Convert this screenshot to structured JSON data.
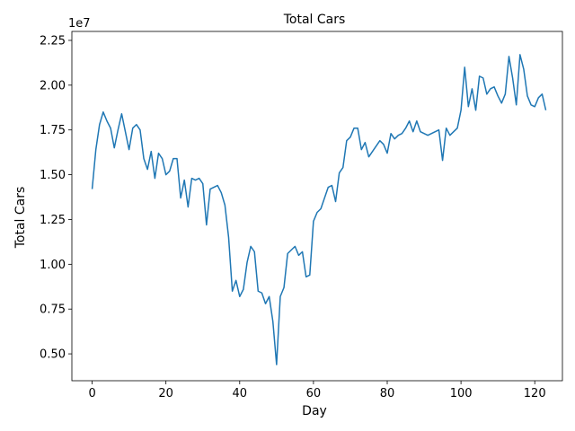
{
  "chart_data": {
    "type": "line",
    "title": "Total Cars",
    "xlabel": "Day",
    "ylabel": "Total Cars",
    "y_offset_label": "1e7",
    "xlim": [
      -5.5,
      127.5
    ],
    "ylim": [
      3.5,
      23.0
    ],
    "grid": false,
    "legend": "none",
    "color": "#1f77b4",
    "xticks": [
      0,
      20,
      40,
      60,
      80,
      100,
      120
    ],
    "xtick_labels": [
      "0",
      "20",
      "40",
      "60",
      "80",
      "100",
      "120"
    ],
    "yticks": [
      5.0,
      7.5,
      10.0,
      12.5,
      15.0,
      17.5,
      20.0,
      22.5
    ],
    "ytick_labels": [
      "0.50",
      "0.75",
      "1.00",
      "1.25",
      "1.50",
      "1.75",
      "2.00",
      "2.25"
    ],
    "series": [
      {
        "values": [
          14.2,
          16.4,
          17.8,
          18.5,
          18.0,
          17.6,
          16.5,
          17.5,
          18.4,
          17.4,
          16.4,
          17.6,
          17.8,
          17.5,
          15.9,
          15.3,
          16.3,
          14.8,
          16.2,
          15.9,
          15.0,
          15.2,
          15.9,
          15.9,
          13.7,
          14.7,
          13.2,
          14.8,
          14.7,
          14.8,
          14.5,
          12.2,
          14.2,
          14.3,
          14.4,
          14.0,
          13.3,
          11.5,
          8.5,
          9.1,
          8.2,
          8.6,
          10.1,
          11.0,
          10.7,
          8.5,
          8.4,
          7.8,
          8.2,
          6.8,
          4.4,
          8.2,
          8.7,
          10.6,
          10.8,
          11.0,
          10.5,
          10.7,
          9.3,
          9.4,
          12.4,
          12.9,
          13.1,
          13.7,
          14.3,
          14.4,
          13.5,
          15.1,
          15.4,
          16.9,
          17.1,
          17.6,
          17.6,
          16.4,
          16.8,
          16.0,
          16.3,
          16.6,
          16.9,
          16.7,
          16.2,
          17.3,
          17.0,
          17.2,
          17.3,
          17.6,
          18.0,
          17.4,
          18.0,
          17.4,
          17.3,
          17.2,
          17.3,
          17.4,
          17.5,
          15.8,
          17.6,
          17.2,
          17.4,
          17.6,
          18.6,
          21.0,
          18.8,
          19.8,
          18.6,
          20.5,
          20.4,
          19.5,
          19.8,
          19.9,
          19.4,
          19.0,
          19.5,
          21.6,
          20.4,
          18.9,
          21.7,
          20.9,
          19.4,
          18.9,
          18.8,
          19.3,
          19.5,
          18.6
        ]
      }
    ]
  }
}
